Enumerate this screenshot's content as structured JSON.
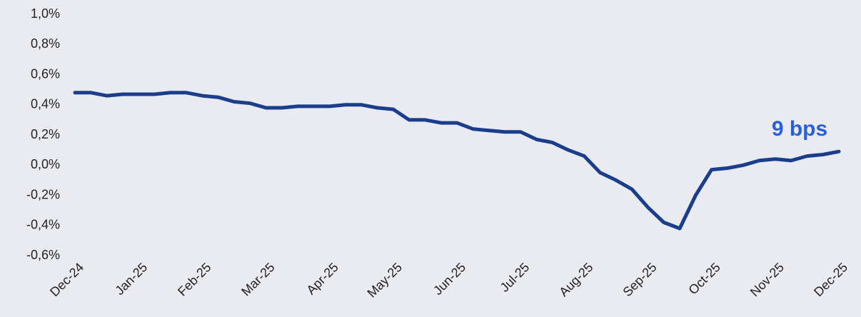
{
  "chart_data": {
    "type": "line",
    "categories": [
      "Dec-24",
      null,
      null,
      null,
      "Jan-25",
      null,
      null,
      null,
      "Feb-25",
      null,
      null,
      null,
      "Mar-25",
      null,
      null,
      null,
      "Apr-25",
      null,
      null,
      null,
      "May-25",
      null,
      null,
      null,
      "Jun-25",
      null,
      null,
      null,
      "Jul-25",
      null,
      null,
      null,
      "Aug-25",
      null,
      null,
      null,
      "Sep-25",
      null,
      null,
      null,
      "Oct-25",
      null,
      null,
      null,
      "Nov-25",
      null,
      null,
      null,
      "Dec-25"
    ],
    "values": [
      0.48,
      0.48,
      0.46,
      0.47,
      0.47,
      0.47,
      0.48,
      0.48,
      0.46,
      0.45,
      0.42,
      0.41,
      0.38,
      0.38,
      0.39,
      0.39,
      0.39,
      0.4,
      0.4,
      0.38,
      0.37,
      0.3,
      0.3,
      0.28,
      0.28,
      0.24,
      0.23,
      0.22,
      0.22,
      0.17,
      0.15,
      0.1,
      0.06,
      -0.05,
      -0.1,
      -0.16,
      -0.28,
      -0.38,
      -0.42,
      -0.2,
      -0.03,
      -0.02,
      0.0,
      0.03,
      0.04,
      0.03,
      0.06,
      0.07,
      0.09
    ],
    "color": "#1a3e8c",
    "ylim": [
      -0.6,
      1.0
    ],
    "yticks": [
      {
        "value": -0.6,
        "label": "-0,6%"
      },
      {
        "value": -0.4,
        "label": "-0,4%"
      },
      {
        "value": -0.2,
        "label": "-0,2%"
      },
      {
        "value": 0.0,
        "label": "0,0%"
      },
      {
        "value": 0.2,
        "label": "0,2%"
      },
      {
        "value": 0.4,
        "label": "0,4%"
      },
      {
        "value": 0.6,
        "label": "0,6%"
      },
      {
        "value": 0.8,
        "label": "0,8%"
      },
      {
        "value": 1.0,
        "label": "1,0%"
      }
    ],
    "grid": false,
    "annotation": "9 bps"
  }
}
